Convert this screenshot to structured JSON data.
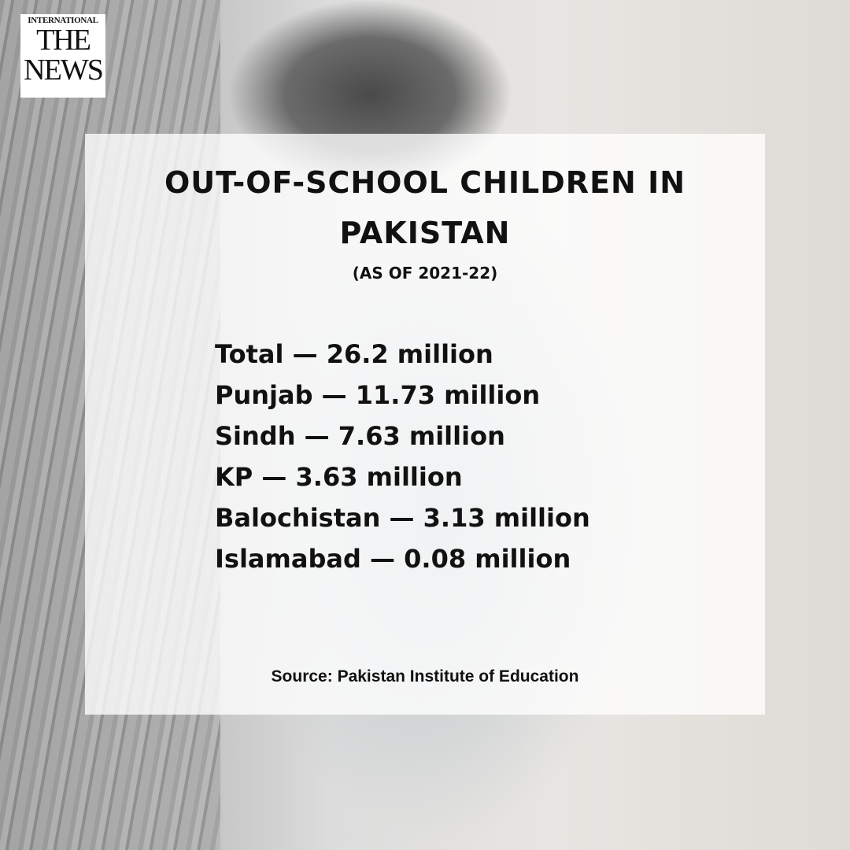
{
  "logo": {
    "top": "INTERNATIONAL",
    "line1": "THE",
    "line2": "NEWS"
  },
  "title": "OUT-OF-SCHOOL CHILDREN IN PAKISTAN",
  "subtitle": "(AS OF 2021-22)",
  "items": [
    "Total — 26.2 million",
    "Punjab — 11.73 million",
    "Sindh — 7.63 million",
    "KP — 3.63 million",
    "Balochistan — 3.13 million",
    "Islamabad — 0.08 million"
  ],
  "source": "Source: Pakistan Institute of Education"
}
